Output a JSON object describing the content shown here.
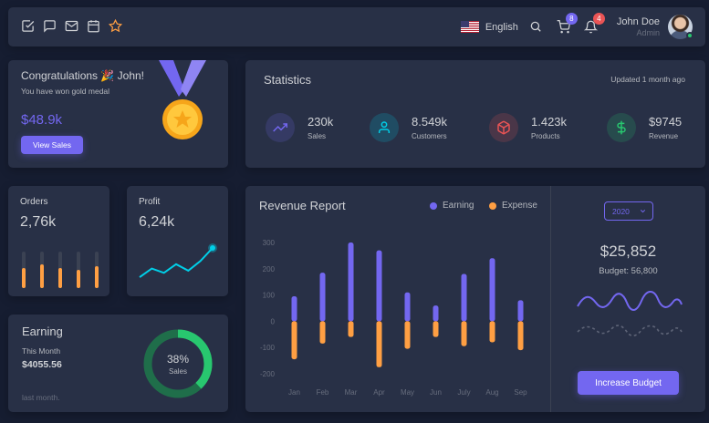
{
  "navbar": {
    "icons": [
      "checkbox-icon",
      "chat-icon",
      "mail-icon",
      "calendar-icon",
      "star-icon"
    ],
    "language": "English",
    "cart_badge": "8",
    "notification_badge": "4",
    "user_name": "John Doe",
    "user_role": "Admin"
  },
  "congrats": {
    "title": "Congratulations 🎉 John!",
    "subtitle": "You have won gold medal",
    "amount": "$48.9k",
    "button_label": "View Sales"
  },
  "statistics": {
    "title": "Statistics",
    "updated": "Updated 1 month ago",
    "items": [
      {
        "value": "230k",
        "label": "Sales",
        "icon": "trending-up-icon",
        "color": "#7367f0"
      },
      {
        "value": "8.549k",
        "label": "Customers",
        "icon": "user-icon",
        "color": "#00cfe8"
      },
      {
        "value": "1.423k",
        "label": "Products",
        "icon": "box-icon",
        "color": "#ea5455"
      },
      {
        "value": "$9745",
        "label": "Revenue",
        "icon": "dollar-icon",
        "color": "#28c76f"
      }
    ]
  },
  "orders": {
    "title": "Orders",
    "value": "2,76k",
    "bar_color": "#ff9f43",
    "bars": [
      {
        "total": 40,
        "filled": 22
      },
      {
        "total": 40,
        "filled": 26
      },
      {
        "total": 40,
        "filled": 22
      },
      {
        "total": 40,
        "filled": 20
      },
      {
        "total": 40,
        "filled": 24
      }
    ]
  },
  "profit": {
    "title": "Profit",
    "value": "6,24k",
    "line_color": "#00cfe8",
    "points": [
      10,
      26,
      18,
      34,
      22,
      40,
      64
    ]
  },
  "earning": {
    "title": "Earning",
    "period": "This Month",
    "amount": "$4055.56",
    "note": "last month.",
    "percent": 38,
    "percent_label": "38%",
    "center_label": "Sales",
    "color": "#28c76f"
  },
  "revenue": {
    "title": "Revenue Report",
    "legend_earning": "Earning",
    "legend_expense": "Expense",
    "year": "2020",
    "budget_amount": "$25,852",
    "budget_sub": "Budget: 56,800",
    "button_label": "Increase Budget"
  },
  "chart_data": {
    "type": "bar",
    "title": "Revenue Report",
    "categories": [
      "Jan",
      "Feb",
      "Mar",
      "Apr",
      "May",
      "Jun",
      "July",
      "Aug",
      "Sep"
    ],
    "series": [
      {
        "name": "Earning",
        "color": "#7367f0",
        "values": [
          95,
          185,
          300,
          270,
          110,
          60,
          180,
          240,
          80
        ]
      },
      {
        "name": "Expense",
        "color": "#ff9f43",
        "values": [
          -145,
          -85,
          -60,
          -175,
          -105,
          -60,
          -95,
          -80,
          -110
        ]
      }
    ],
    "ylim": [
      -200,
      300
    ],
    "yticks": [
      300,
      200,
      100,
      0,
      -100,
      -200
    ],
    "ytick_labels": [
      "300",
      "200",
      "100",
      "0",
      "-100",
      "-200"
    ],
    "legend": "top-right",
    "grid": false
  }
}
